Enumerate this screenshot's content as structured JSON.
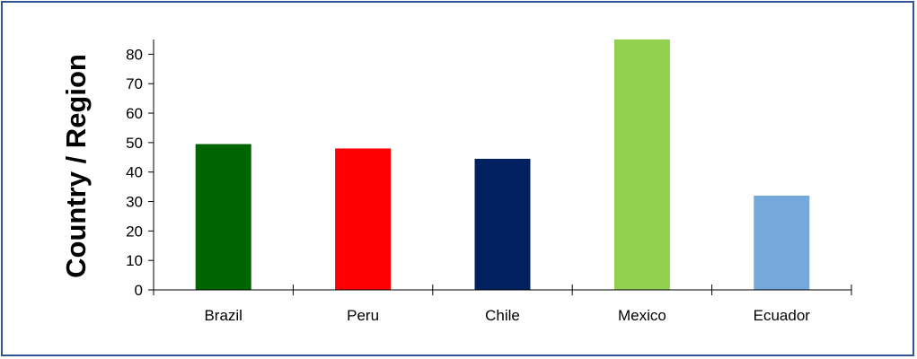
{
  "chart_data": {
    "type": "bar",
    "title": "",
    "xlabel": "",
    "ylabel": "Country / Region",
    "categories": [
      "Brazil",
      "Peru",
      "Chile",
      "Mexico",
      "Ecuador"
    ],
    "values": [
      49.5,
      48,
      44.5,
      85,
      32
    ],
    "colors": [
      "#006400",
      "#ff0000",
      "#002060",
      "#92d050",
      "#76a9db"
    ],
    "ylim": [
      0,
      85
    ],
    "yticks": [
      0,
      10,
      20,
      30,
      40,
      50,
      60,
      70,
      80
    ],
    "grid": false,
    "legend": "none"
  }
}
